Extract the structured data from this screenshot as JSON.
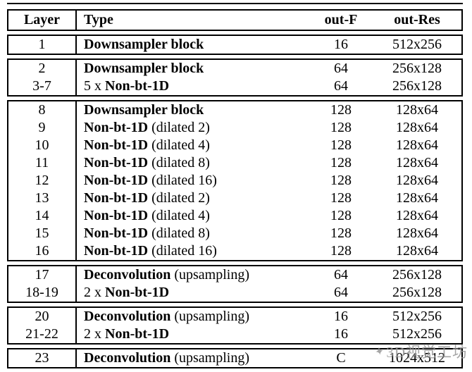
{
  "table": {
    "headers": [
      "Layer",
      "Type",
      "out-F",
      "out-Res"
    ],
    "groups": [
      {
        "rows": [
          {
            "layer": "1",
            "pre": "",
            "bold": "Downsampler block",
            "suf": "",
            "outF": "16",
            "outRes": "512x256"
          }
        ]
      },
      {
        "rows": [
          {
            "layer": "2",
            "pre": "",
            "bold": "Downsampler block",
            "suf": "",
            "outF": "64",
            "outRes": "256x128"
          },
          {
            "layer": "3-7",
            "pre": "5 x ",
            "bold": "Non-bt-1D",
            "suf": "",
            "outF": "64",
            "outRes": "256x128"
          }
        ]
      },
      {
        "rows": [
          {
            "layer": "8",
            "pre": "",
            "bold": "Downsampler block",
            "suf": "",
            "outF": "128",
            "outRes": "128x64"
          },
          {
            "layer": "9",
            "pre": "",
            "bold": "Non-bt-1D",
            "suf": " (dilated 2)",
            "outF": "128",
            "outRes": "128x64"
          },
          {
            "layer": "10",
            "pre": "",
            "bold": "Non-bt-1D",
            "suf": " (dilated 4)",
            "outF": "128",
            "outRes": "128x64"
          },
          {
            "layer": "11",
            "pre": "",
            "bold": "Non-bt-1D",
            "suf": " (dilated 8)",
            "outF": "128",
            "outRes": "128x64"
          },
          {
            "layer": "12",
            "pre": "",
            "bold": "Non-bt-1D",
            "suf": " (dilated 16)",
            "outF": "128",
            "outRes": "128x64"
          },
          {
            "layer": "13",
            "pre": "",
            "bold": "Non-bt-1D",
            "suf": " (dilated 2)",
            "outF": "128",
            "outRes": "128x64"
          },
          {
            "layer": "14",
            "pre": "",
            "bold": "Non-bt-1D",
            "suf": " (dilated 4)",
            "outF": "128",
            "outRes": "128x64"
          },
          {
            "layer": "15",
            "pre": "",
            "bold": "Non-bt-1D",
            "suf": " (dilated 8)",
            "outF": "128",
            "outRes": "128x64"
          },
          {
            "layer": "16",
            "pre": "",
            "bold": "Non-bt-1D",
            "suf": " (dilated 16)",
            "outF": "128",
            "outRes": "128x64"
          }
        ]
      },
      {
        "rows": [
          {
            "layer": "17",
            "pre": "",
            "bold": "Deconvolution",
            "suf": " (upsampling)",
            "outF": "64",
            "outRes": "256x128"
          },
          {
            "layer": "18-19",
            "pre": "2 x ",
            "bold": "Non-bt-1D",
            "suf": "",
            "outF": "64",
            "outRes": "256x128"
          }
        ]
      },
      {
        "rows": [
          {
            "layer": "20",
            "pre": "",
            "bold": "Deconvolution",
            "suf": " (upsampling)",
            "outF": "16",
            "outRes": "512x256"
          },
          {
            "layer": "21-22",
            "pre": "2 x ",
            "bold": "Non-bt-1D",
            "suf": "",
            "outF": "16",
            "outRes": "512x256"
          }
        ]
      },
      {
        "rows": [
          {
            "layer": "23",
            "pre": "",
            "bold": "Deconvolution",
            "suf": " (upsampling)",
            "outF": "C",
            "outRes": "1024x512"
          }
        ]
      }
    ]
  },
  "watermark": {
    "text": "3D视觉工坊",
    "color": "#8f8f8f"
  }
}
